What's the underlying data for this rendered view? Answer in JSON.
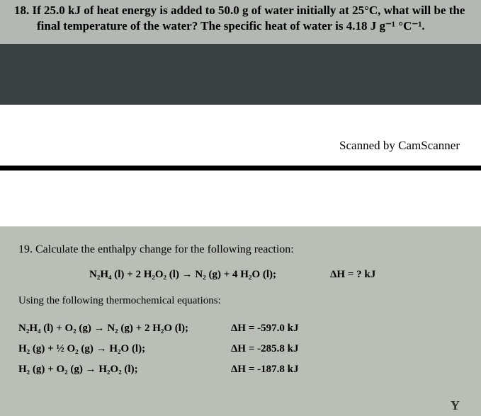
{
  "q18": {
    "line1": "18. If 25.0 kJ of heat energy is added to 50.0 g of water initially at 25°C, what will be the",
    "line2": "final temperature of the water? The specific heat of water is 4.18 J g⁻¹ °C⁻¹."
  },
  "scanned_by": "Scanned by CamScanner",
  "q19": {
    "prompt": "19. Calculate the enthalpy change for the following reaction:",
    "main_eq": "N₂H₄ (l) + 2 H₂O₂ (l) → N₂ (g) + 4 H₂O (l);",
    "main_dh": "ΔH = ? kJ",
    "using": "Using the following thermochemical equations:",
    "eq1_left": "N₂H₄ (l) + O₂ (g) → N₂ (g) + 2 H₂O (l);",
    "eq1_right": "ΔH = -597.0 kJ",
    "eq2_left": "H₂ (g) + ½ O₂ (g) → H₂O (l);",
    "eq2_right": "ΔH = -285.8 kJ",
    "eq3_left": "H₂ (g) + O₂ (g) → H₂O₂ (l);",
    "eq3_right": "ΔH = -187.8 kJ"
  },
  "colors": {
    "page1_top_bg": "#b4b8b4",
    "page1_mid_bg": "#3c4243",
    "page2_bg": "#bbbeb7",
    "text": "#000000",
    "divider": "#000000"
  }
}
